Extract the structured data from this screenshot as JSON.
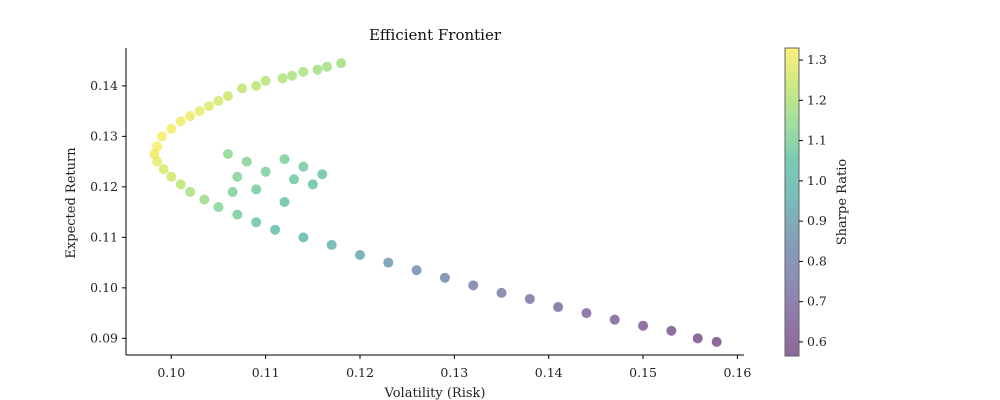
{
  "chart_data": {
    "type": "scatter",
    "title": "Efficient Frontier",
    "xlabel": "Volatility (Risk)",
    "ylabel": "Expected Return",
    "xlim": [
      0.0952,
      0.1607
    ],
    "ylim": [
      0.0867,
      0.1475
    ],
    "xticks": [
      "0.10",
      "0.11",
      "0.12",
      "0.13",
      "0.14",
      "0.15",
      "0.16"
    ],
    "yticks": [
      "0.09",
      "0.10",
      "0.11",
      "0.12",
      "0.13",
      "0.14"
    ],
    "grid": false,
    "colorbar": {
      "label": "Sharpe Ratio",
      "colormap": "viridis",
      "range": [
        0.565,
        1.33
      ],
      "ticks": [
        "0.6",
        "0.7",
        "0.8",
        "0.9",
        "1.0",
        "1.1",
        "1.2",
        "1.3"
      ]
    },
    "marker_alpha": 0.6,
    "points": [
      {
        "x": 0.118,
        "y": 0.1445,
        "c": 1.18
      },
      {
        "x": 0.1165,
        "y": 0.1438,
        "c": 1.18
      },
      {
        "x": 0.1155,
        "y": 0.1432,
        "c": 1.18
      },
      {
        "x": 0.114,
        "y": 0.1428,
        "c": 1.19
      },
      {
        "x": 0.1128,
        "y": 0.142,
        "c": 1.19
      },
      {
        "x": 0.1118,
        "y": 0.1415,
        "c": 1.2
      },
      {
        "x": 0.11,
        "y": 0.141,
        "c": 1.21
      },
      {
        "x": 0.109,
        "y": 0.14,
        "c": 1.22
      },
      {
        "x": 0.1075,
        "y": 0.1395,
        "c": 1.23
      },
      {
        "x": 0.106,
        "y": 0.138,
        "c": 1.25
      },
      {
        "x": 0.105,
        "y": 0.137,
        "c": 1.26
      },
      {
        "x": 0.104,
        "y": 0.136,
        "c": 1.28
      },
      {
        "x": 0.103,
        "y": 0.135,
        "c": 1.29
      },
      {
        "x": 0.102,
        "y": 0.134,
        "c": 1.3
      },
      {
        "x": 0.101,
        "y": 0.133,
        "c": 1.31
      },
      {
        "x": 0.1,
        "y": 0.1315,
        "c": 1.32
      },
      {
        "x": 0.099,
        "y": 0.13,
        "c": 1.32
      },
      {
        "x": 0.0985,
        "y": 0.128,
        "c": 1.32
      },
      {
        "x": 0.0982,
        "y": 0.1265,
        "c": 1.31
      },
      {
        "x": 0.0985,
        "y": 0.125,
        "c": 1.29
      },
      {
        "x": 0.0992,
        "y": 0.1235,
        "c": 1.27
      },
      {
        "x": 0.1,
        "y": 0.122,
        "c": 1.25
      },
      {
        "x": 0.101,
        "y": 0.1205,
        "c": 1.22
      },
      {
        "x": 0.102,
        "y": 0.119,
        "c": 1.19
      },
      {
        "x": 0.1035,
        "y": 0.1175,
        "c": 1.16
      },
      {
        "x": 0.105,
        "y": 0.116,
        "c": 1.12
      },
      {
        "x": 0.107,
        "y": 0.1145,
        "c": 1.09
      },
      {
        "x": 0.109,
        "y": 0.113,
        "c": 1.06
      },
      {
        "x": 0.111,
        "y": 0.1115,
        "c": 1.03
      },
      {
        "x": 0.114,
        "y": 0.11,
        "c": 0.99
      },
      {
        "x": 0.117,
        "y": 0.1085,
        "c": 0.96
      },
      {
        "x": 0.12,
        "y": 0.1065,
        "c": 0.92
      },
      {
        "x": 0.123,
        "y": 0.105,
        "c": 0.88
      },
      {
        "x": 0.126,
        "y": 0.1035,
        "c": 0.85
      },
      {
        "x": 0.129,
        "y": 0.102,
        "c": 0.82
      },
      {
        "x": 0.132,
        "y": 0.1005,
        "c": 0.79
      },
      {
        "x": 0.135,
        "y": 0.099,
        "c": 0.76
      },
      {
        "x": 0.138,
        "y": 0.0978,
        "c": 0.73
      },
      {
        "x": 0.141,
        "y": 0.0962,
        "c": 0.7
      },
      {
        "x": 0.144,
        "y": 0.095,
        "c": 0.67
      },
      {
        "x": 0.147,
        "y": 0.0937,
        "c": 0.65
      },
      {
        "x": 0.15,
        "y": 0.0925,
        "c": 0.62
      },
      {
        "x": 0.153,
        "y": 0.0915,
        "c": 0.6
      },
      {
        "x": 0.1558,
        "y": 0.09,
        "c": 0.58
      },
      {
        "x": 0.1578,
        "y": 0.0893,
        "c": 0.57
      },
      {
        "x": 0.112,
        "y": 0.1255,
        "c": 1.1
      },
      {
        "x": 0.114,
        "y": 0.124,
        "c": 1.08
      },
      {
        "x": 0.116,
        "y": 0.1225,
        "c": 1.06
      },
      {
        "x": 0.11,
        "y": 0.123,
        "c": 1.1
      },
      {
        "x": 0.108,
        "y": 0.125,
        "c": 1.12
      },
      {
        "x": 0.106,
        "y": 0.1265,
        "c": 1.14
      },
      {
        "x": 0.115,
        "y": 0.1205,
        "c": 1.05
      },
      {
        "x": 0.113,
        "y": 0.1215,
        "c": 1.07
      },
      {
        "x": 0.109,
        "y": 0.1195,
        "c": 1.08
      },
      {
        "x": 0.112,
        "y": 0.117,
        "c": 1.05
      },
      {
        "x": 0.107,
        "y": 0.122,
        "c": 1.12
      },
      {
        "x": 0.1065,
        "y": 0.119,
        "c": 1.1
      }
    ]
  }
}
